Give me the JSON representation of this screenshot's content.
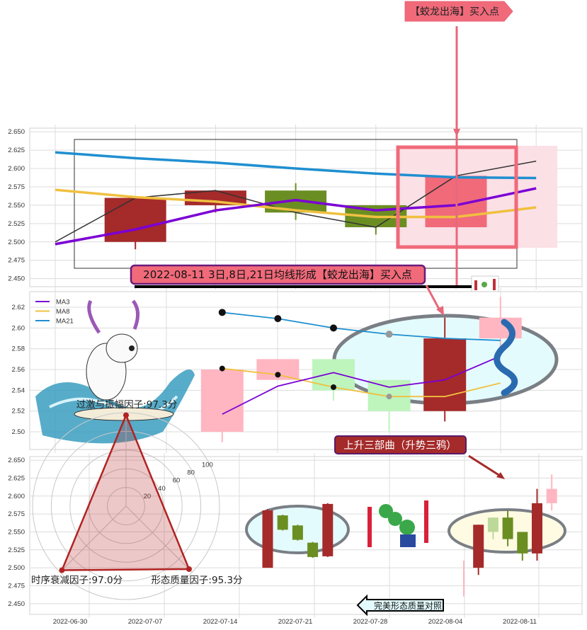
{
  "annotations": {
    "top_arrow": "【蛟龙出海】买入点",
    "signal_box": "2022-08-11 3日,8日,21日均线形成【蛟龙出海】买入点",
    "pattern_box": "上升三部曲（升势三鸦）",
    "compare_arrow": "完美形态质量对照"
  },
  "colors": {
    "bull": "#a52a2a",
    "bear": "#6b8e23",
    "highlight": "#f06a7a",
    "light_bull": "#ffb6c1",
    "light_bear": "#bdf5bd",
    "ma3": "#7b00d4",
    "ma8": "#f0c040",
    "ma21": "#1f8fd0",
    "close_line": "#333333"
  },
  "chart_data": [
    {
      "type": "candlestick",
      "panel": "top",
      "ylim": [
        2.44,
        2.655
      ],
      "yticks": [
        "2.650",
        "2.625",
        "2.600",
        "2.575",
        "2.550",
        "2.525",
        "2.500",
        "2.475",
        "2.450"
      ],
      "grid": true,
      "candles": [
        {
          "o": 2.5,
          "h": 2.56,
          "l": 2.49,
          "c": 2.56,
          "style": "bull"
        },
        {
          "o": 2.55,
          "h": 2.57,
          "l": 2.54,
          "c": 2.57,
          "style": "bull"
        },
        {
          "o": 2.57,
          "h": 2.58,
          "l": 2.53,
          "c": 2.54,
          "style": "bear"
        },
        {
          "o": 2.55,
          "h": 2.55,
          "l": 2.51,
          "c": 2.52,
          "style": "bear"
        },
        {
          "o": 2.52,
          "h": 2.59,
          "l": 2.52,
          "c": 2.59,
          "style": "highlight"
        }
      ],
      "series": [
        {
          "key": "close",
          "values": [
            2.5,
            2.56,
            2.57,
            2.54,
            2.52,
            2.59,
            2.61
          ]
        },
        {
          "key": "ma21",
          "values": [
            2.622,
            2.614,
            2.608,
            2.6,
            2.593,
            2.588,
            2.587
          ]
        },
        {
          "key": "ma8",
          "values": [
            2.571,
            2.561,
            2.555,
            2.543,
            2.534,
            2.534,
            2.547
          ]
        },
        {
          "key": "ma3",
          "values": [
            2.497,
            2.517,
            2.543,
            2.557,
            2.543,
            2.55,
            2.573
          ]
        }
      ]
    },
    {
      "type": "candlestick",
      "panel": "middle",
      "ylim": [
        2.483,
        2.635
      ],
      "yticks": [
        "2.62",
        "2.60",
        "2.58",
        "2.56",
        "2.54",
        "2.52",
        "2.50"
      ],
      "grid": true,
      "legend": [
        "MA3",
        "MA8",
        "MA21"
      ],
      "legend_position": "top-left",
      "candles": [
        {
          "o": 2.5,
          "h": 2.56,
          "l": 2.49,
          "c": 2.56,
          "style": "light_bull"
        },
        {
          "o": 2.55,
          "h": 2.57,
          "l": 2.55,
          "c": 2.57,
          "style": "light_bull"
        },
        {
          "o": 2.57,
          "h": 2.57,
          "l": 2.53,
          "c": 2.54,
          "style": "light_bear"
        },
        {
          "o": 2.55,
          "h": 2.55,
          "l": 2.5,
          "c": 2.52,
          "style": "light_bear"
        },
        {
          "o": 2.52,
          "h": 2.61,
          "l": 2.51,
          "c": 2.59,
          "style": "bull"
        },
        {
          "o": 2.59,
          "h": 2.63,
          "l": 2.58,
          "c": 2.61,
          "style": "light_bull"
        }
      ],
      "series": [
        {
          "key": "ma21",
          "name": "MA21",
          "values": [
            2.615,
            2.609,
            2.6,
            2.594,
            2.59,
            2.588
          ]
        },
        {
          "key": "ma8",
          "name": "MA8",
          "values": [
            2.561,
            2.555,
            2.543,
            2.534,
            2.534,
            2.547
          ]
        },
        {
          "key": "ma3",
          "name": "MA3",
          "values": [
            2.517,
            2.544,
            2.557,
            2.543,
            2.55,
            2.573
          ]
        }
      ]
    },
    {
      "type": "candlestick",
      "panel": "bottom",
      "ylim": [
        2.435,
        2.655
      ],
      "yticks": [
        "2.650",
        "2.625",
        "2.600",
        "2.575",
        "2.550",
        "2.525",
        "2.500",
        "2.475",
        "2.450"
      ],
      "xticks": [
        "2022-06-30",
        "2022-07-07",
        "2022-07-14",
        "2022-07-21",
        "2022-07-28",
        "2022-08-04",
        "2022-08-11"
      ],
      "grid": true,
      "groups": [
        {
          "label": "perfect",
          "candles": [
            {
              "o": 2.5,
              "h": 2.582,
              "l": 2.5,
              "c": 2.58,
              "style": "bull"
            },
            {
              "o": 2.573,
              "h": 2.574,
              "l": 2.552,
              "c": 2.553,
              "style": "bear"
            },
            {
              "o": 2.559,
              "h": 2.56,
              "l": 2.538,
              "c": 2.539,
              "style": "bear"
            },
            {
              "o": 2.535,
              "h": 2.536,
              "l": 2.514,
              "c": 2.515,
              "style": "bear"
            },
            {
              "o": 2.516,
              "h": 2.59,
              "l": 2.515,
              "c": 2.589,
              "style": "bull"
            }
          ]
        },
        {
          "label": "actual",
          "candles": [
            {
              "o": 2.485,
              "h": 2.51,
              "l": 2.46,
              "c": 2.485,
              "style": "light_bull"
            },
            {
              "o": 2.5,
              "h": 2.56,
              "l": 2.49,
              "c": 2.56,
              "style": "bull"
            },
            {
              "o": 2.57,
              "h": 2.57,
              "l": 2.54,
              "c": 2.55,
              "style": "light_bear2"
            },
            {
              "o": 2.57,
              "h": 2.58,
              "l": 2.53,
              "c": 2.54,
              "style": "bear"
            },
            {
              "o": 2.55,
              "h": 2.55,
              "l": 2.51,
              "c": 2.52,
              "style": "bear"
            },
            {
              "o": 2.52,
              "h": 2.61,
              "l": 2.51,
              "c": 2.59,
              "style": "bull"
            },
            {
              "o": 2.59,
              "h": 2.63,
              "l": 2.58,
              "c": 2.61,
              "style": "light_bull"
            }
          ]
        }
      ]
    },
    {
      "type": "radar",
      "rticks": [
        "20",
        "40",
        "60",
        "80",
        "100"
      ],
      "rmax": 100,
      "axes": [
        {
          "label": "过激与振幅因子:97.3分",
          "value": 97.3
        },
        {
          "label": "时序衰减因子:97.0分",
          "value": 97.0
        },
        {
          "label": "形态质量因子:95.3分",
          "value": 95.3
        }
      ]
    }
  ]
}
